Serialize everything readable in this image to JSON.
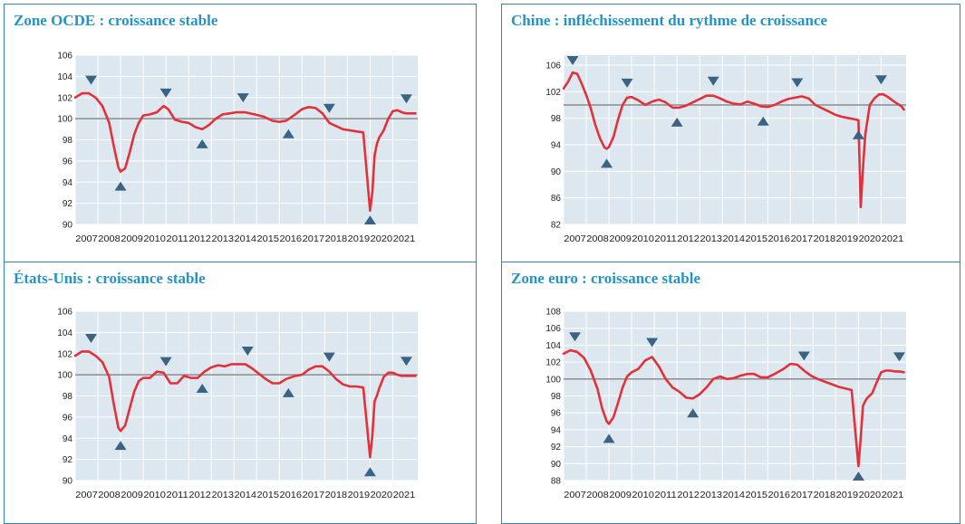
{
  "colors": {
    "panel_border": "#2f86b0",
    "title": "#2394c4",
    "plot_bg": "#dde7ef",
    "grid": "#ffffff",
    "baseline": "#8c8c8c",
    "series": "#e2313a",
    "marker": "#3b6383"
  },
  "charts": [
    {
      "title": "Zone OCDE :  croissance stable"
    },
    {
      "title": "Chine : infléchissement du rythme de croissance"
    },
    {
      "title": "États-Unis : croissance stable"
    },
    {
      "title": "Zone euro : croissance stable"
    }
  ],
  "chart_data": [
    {
      "type": "line",
      "title": "Zone OCDE :  croissance stable",
      "xlabel": "",
      "ylabel": "",
      "x_tick_labels": [
        "2007",
        "2008",
        "2009",
        "2010",
        "2011",
        "2012",
        "2013",
        "2014",
        "2015",
        "2016",
        "2017",
        "2018",
        "2019",
        "2020",
        "2021"
      ],
      "y_ticks": [
        90,
        92,
        94,
        96,
        98,
        100,
        102,
        104,
        106
      ],
      "ylim": [
        90,
        106
      ],
      "xlim": [
        2007,
        2022.1
      ],
      "grid": true,
      "reference_line": 100,
      "series": [
        {
          "x": [
            2007.0,
            2007.3,
            2007.6,
            2007.9,
            2008.2,
            2008.5,
            2008.7,
            2008.9,
            2009.0,
            2009.2,
            2009.4,
            2009.6,
            2009.8,
            2010.0,
            2010.3,
            2010.6,
            2010.9,
            2011.1,
            2011.4,
            2011.7,
            2012.0,
            2012.3,
            2012.6,
            2012.9,
            2013.2,
            2013.5,
            2013.8,
            2014.1,
            2014.5,
            2014.9,
            2015.3,
            2015.7,
            2016.0,
            2016.3,
            2016.7,
            2017.0,
            2017.3,
            2017.6,
            2017.9,
            2018.2,
            2018.5,
            2018.8,
            2019.1,
            2019.4,
            2019.7,
            2020.0,
            2020.1,
            2020.2,
            2020.3,
            2020.4,
            2020.6,
            2020.8,
            2021.0,
            2021.2,
            2021.4,
            2021.6,
            2021.8,
            2022.0
          ],
          "values": [
            102.0,
            102.4,
            102.4,
            102.0,
            101.2,
            99.6,
            97.4,
            95.4,
            95.0,
            95.3,
            96.8,
            98.5,
            99.6,
            100.3,
            100.4,
            100.6,
            101.2,
            100.9,
            99.9,
            99.7,
            99.6,
            99.2,
            99.0,
            99.4,
            100.0,
            100.4,
            100.5,
            100.6,
            100.6,
            100.4,
            100.2,
            99.8,
            99.7,
            99.8,
            100.4,
            100.9,
            101.1,
            101.0,
            100.5,
            99.6,
            99.3,
            99.0,
            98.9,
            98.8,
            98.7,
            91.3,
            93.0,
            96.5,
            97.6,
            98.2,
            98.9,
            100.0,
            100.7,
            100.8,
            100.6,
            100.5,
            100.5,
            100.5
          ]
        }
      ],
      "annotations": [
        {
          "type": "peak",
          "x": 2007.7
        },
        {
          "type": "trough",
          "x": 2009.0
        },
        {
          "type": "peak",
          "x": 2011.0
        },
        {
          "type": "trough",
          "x": 2012.6
        },
        {
          "type": "peak",
          "x": 2014.4
        },
        {
          "type": "trough",
          "x": 2016.4
        },
        {
          "type": "peak",
          "x": 2018.2
        },
        {
          "type": "trough",
          "x": 2020.0
        },
        {
          "type": "peak",
          "x": 2021.6
        }
      ]
    },
    {
      "type": "line",
      "title": "Chine : infléchissement du rythme de croissance",
      "xlabel": "",
      "ylabel": "",
      "x_tick_labels": [
        "2007",
        "2008",
        "2009",
        "2010",
        "2011",
        "2012",
        "2013",
        "2014",
        "2015",
        "2016",
        "2017",
        "2018",
        "2019",
        "2020",
        "2021"
      ],
      "y_ticks": [
        82,
        86,
        90,
        94,
        98,
        102,
        106
      ],
      "ylim": [
        82,
        107.5
      ],
      "xlim": [
        2007,
        2022.1
      ],
      "grid": true,
      "reference_line": 100,
      "series": [
        {
          "x": [
            2007.0,
            2007.2,
            2007.4,
            2007.6,
            2007.8,
            2008.0,
            2008.2,
            2008.4,
            2008.6,
            2008.8,
            2008.9,
            2009.0,
            2009.2,
            2009.4,
            2009.6,
            2009.8,
            2010.0,
            2010.3,
            2010.6,
            2010.9,
            2011.2,
            2011.5,
            2011.8,
            2012.1,
            2012.4,
            2012.7,
            2013.0,
            2013.3,
            2013.6,
            2013.9,
            2014.2,
            2014.5,
            2014.8,
            2015.1,
            2015.4,
            2015.7,
            2016.0,
            2016.3,
            2016.6,
            2016.9,
            2017.2,
            2017.5,
            2017.8,
            2018.1,
            2018.4,
            2018.7,
            2019.0,
            2019.3,
            2019.6,
            2019.9,
            2020.0,
            2020.1,
            2020.2,
            2020.3,
            2020.5,
            2020.7,
            2020.9,
            2021.1,
            2021.3,
            2021.5,
            2021.7,
            2021.9,
            2022.0
          ],
          "values": [
            102.5,
            103.5,
            104.9,
            104.7,
            103.2,
            101.5,
            99.5,
            97.0,
            95.0,
            93.6,
            93.4,
            93.7,
            95.2,
            97.8,
            100.0,
            101.1,
            101.2,
            100.7,
            100.0,
            100.5,
            100.8,
            100.4,
            99.6,
            99.6,
            99.9,
            100.4,
            100.9,
            101.4,
            101.4,
            101.0,
            100.5,
            100.2,
            100.1,
            100.5,
            100.2,
            99.8,
            99.7,
            100.0,
            100.5,
            100.9,
            101.1,
            101.3,
            101.0,
            100.0,
            99.5,
            99.0,
            98.5,
            98.2,
            98.0,
            97.8,
            97.7,
            84.6,
            90.5,
            95.5,
            100.0,
            101.0,
            101.6,
            101.6,
            101.2,
            100.7,
            100.2,
            99.8,
            99.3
          ]
        }
      ],
      "annotations": [
        {
          "type": "peak",
          "x": 2007.4
        },
        {
          "type": "trough",
          "x": 2008.9
        },
        {
          "type": "peak",
          "x": 2009.8
        },
        {
          "type": "trough",
          "x": 2012.0
        },
        {
          "type": "peak",
          "x": 2013.6
        },
        {
          "type": "trough",
          "x": 2015.8
        },
        {
          "type": "peak",
          "x": 2017.3
        },
        {
          "type": "trough",
          "x": 2020.0
        },
        {
          "type": "peak",
          "x": 2021.0
        }
      ]
    },
    {
      "type": "line",
      "title": "États-Unis : croissance stable",
      "xlabel": "",
      "ylabel": "",
      "x_tick_labels": [
        "2007",
        "2008",
        "2009",
        "2010",
        "2011",
        "2012",
        "2013",
        "2014",
        "2015",
        "2016",
        "2017",
        "2018",
        "2019",
        "2020",
        "2021"
      ],
      "y_ticks": [
        90,
        92,
        94,
        96,
        98,
        100,
        102,
        104,
        106
      ],
      "ylim": [
        90,
        106
      ],
      "xlim": [
        2007,
        2022.1
      ],
      "grid": true,
      "reference_line": 100,
      "series": [
        {
          "x": [
            2007.0,
            2007.3,
            2007.6,
            2007.9,
            2008.2,
            2008.5,
            2008.7,
            2008.9,
            2009.0,
            2009.2,
            2009.4,
            2009.6,
            2009.8,
            2010.0,
            2010.3,
            2010.6,
            2010.9,
            2011.2,
            2011.5,
            2011.8,
            2012.1,
            2012.4,
            2012.7,
            2013.0,
            2013.3,
            2013.6,
            2013.9,
            2014.2,
            2014.5,
            2014.8,
            2015.1,
            2015.4,
            2015.7,
            2016.0,
            2016.3,
            2016.7,
            2017.0,
            2017.3,
            2017.6,
            2017.9,
            2018.2,
            2018.5,
            2018.8,
            2019.1,
            2019.4,
            2019.7,
            2020.0,
            2020.1,
            2020.2,
            2020.3,
            2020.4,
            2020.6,
            2020.8,
            2021.0,
            2021.2,
            2021.4,
            2021.6,
            2021.8,
            2022.0
          ],
          "values": [
            101.8,
            102.2,
            102.2,
            101.8,
            101.2,
            99.8,
            97.2,
            95.0,
            94.7,
            95.2,
            96.8,
            98.4,
            99.4,
            99.7,
            99.7,
            100.3,
            100.2,
            99.2,
            99.2,
            99.9,
            99.7,
            99.7,
            100.3,
            100.7,
            100.9,
            100.8,
            101.0,
            101.0,
            101.0,
            100.6,
            100.1,
            99.6,
            99.2,
            99.2,
            99.6,
            99.9,
            100.0,
            100.5,
            100.8,
            100.8,
            100.3,
            99.6,
            99.1,
            98.9,
            98.9,
            98.8,
            92.2,
            94.2,
            97.5,
            98.0,
            98.7,
            99.8,
            100.2,
            100.2,
            100.0,
            99.9,
            99.9,
            99.9,
            99.9
          ]
        }
      ],
      "annotations": [
        {
          "type": "peak",
          "x": 2007.7
        },
        {
          "type": "trough",
          "x": 2009.0
        },
        {
          "type": "peak",
          "x": 2011.0
        },
        {
          "type": "trough",
          "x": 2012.6
        },
        {
          "type": "peak",
          "x": 2014.6
        },
        {
          "type": "trough",
          "x": 2016.4
        },
        {
          "type": "peak",
          "x": 2018.2
        },
        {
          "type": "trough",
          "x": 2020.0
        },
        {
          "type": "peak",
          "x": 2021.6
        }
      ]
    },
    {
      "type": "line",
      "title": "Zone euro : croissance stable",
      "xlabel": "",
      "ylabel": "",
      "x_tick_labels": [
        "2007",
        "2008",
        "2009",
        "2010",
        "2011",
        "2012",
        "2013",
        "2014",
        "2015",
        "2016",
        "2017",
        "2018",
        "2019",
        "2020",
        "2021"
      ],
      "y_ticks": [
        88,
        90,
        92,
        94,
        96,
        98,
        100,
        102,
        104,
        106,
        108
      ],
      "ylim": [
        88,
        108
      ],
      "xlim": [
        2007,
        2022.1
      ],
      "grid": true,
      "reference_line": 100,
      "series": [
        {
          "x": [
            2007.0,
            2007.3,
            2007.6,
            2007.9,
            2008.2,
            2008.5,
            2008.7,
            2008.9,
            2009.0,
            2009.2,
            2009.4,
            2009.6,
            2009.8,
            2010.0,
            2010.3,
            2010.6,
            2010.9,
            2011.2,
            2011.5,
            2011.8,
            2012.1,
            2012.4,
            2012.7,
            2013.0,
            2013.3,
            2013.6,
            2013.9,
            2014.2,
            2014.5,
            2014.8,
            2015.1,
            2015.4,
            2015.7,
            2016.0,
            2016.3,
            2016.7,
            2017.0,
            2017.3,
            2017.6,
            2017.9,
            2018.2,
            2018.5,
            2018.8,
            2019.1,
            2019.4,
            2019.7,
            2020.0,
            2020.1,
            2020.2,
            2020.3,
            2020.4,
            2020.6,
            2020.8,
            2021.0,
            2021.2,
            2021.4,
            2021.6,
            2021.8,
            2022.0
          ],
          "values": [
            103.0,
            103.4,
            103.2,
            102.5,
            101.0,
            98.8,
            96.5,
            95.0,
            94.7,
            95.5,
            97.2,
            99.0,
            100.3,
            100.8,
            101.2,
            102.2,
            102.6,
            101.5,
            100.0,
            99.0,
            98.5,
            97.8,
            97.7,
            98.2,
            99.0,
            100.0,
            100.3,
            100.0,
            100.1,
            100.4,
            100.6,
            100.6,
            100.2,
            100.2,
            100.6,
            101.2,
            101.8,
            101.7,
            101.0,
            100.4,
            100.0,
            99.7,
            99.4,
            99.1,
            98.9,
            98.7,
            89.7,
            93.0,
            96.8,
            97.4,
            97.8,
            98.3,
            99.6,
            100.8,
            101.0,
            101.0,
            100.9,
            100.9,
            100.8
          ]
        }
      ],
      "annotations": [
        {
          "type": "peak",
          "x": 2007.5
        },
        {
          "type": "trough",
          "x": 2009.0
        },
        {
          "type": "peak",
          "x": 2010.9
        },
        {
          "type": "trough",
          "x": 2012.7
        },
        {
          "type": "peak",
          "x": 2017.6
        },
        {
          "type": "trough",
          "x": 2020.0
        },
        {
          "type": "peak",
          "x": 2021.8
        }
      ]
    }
  ]
}
